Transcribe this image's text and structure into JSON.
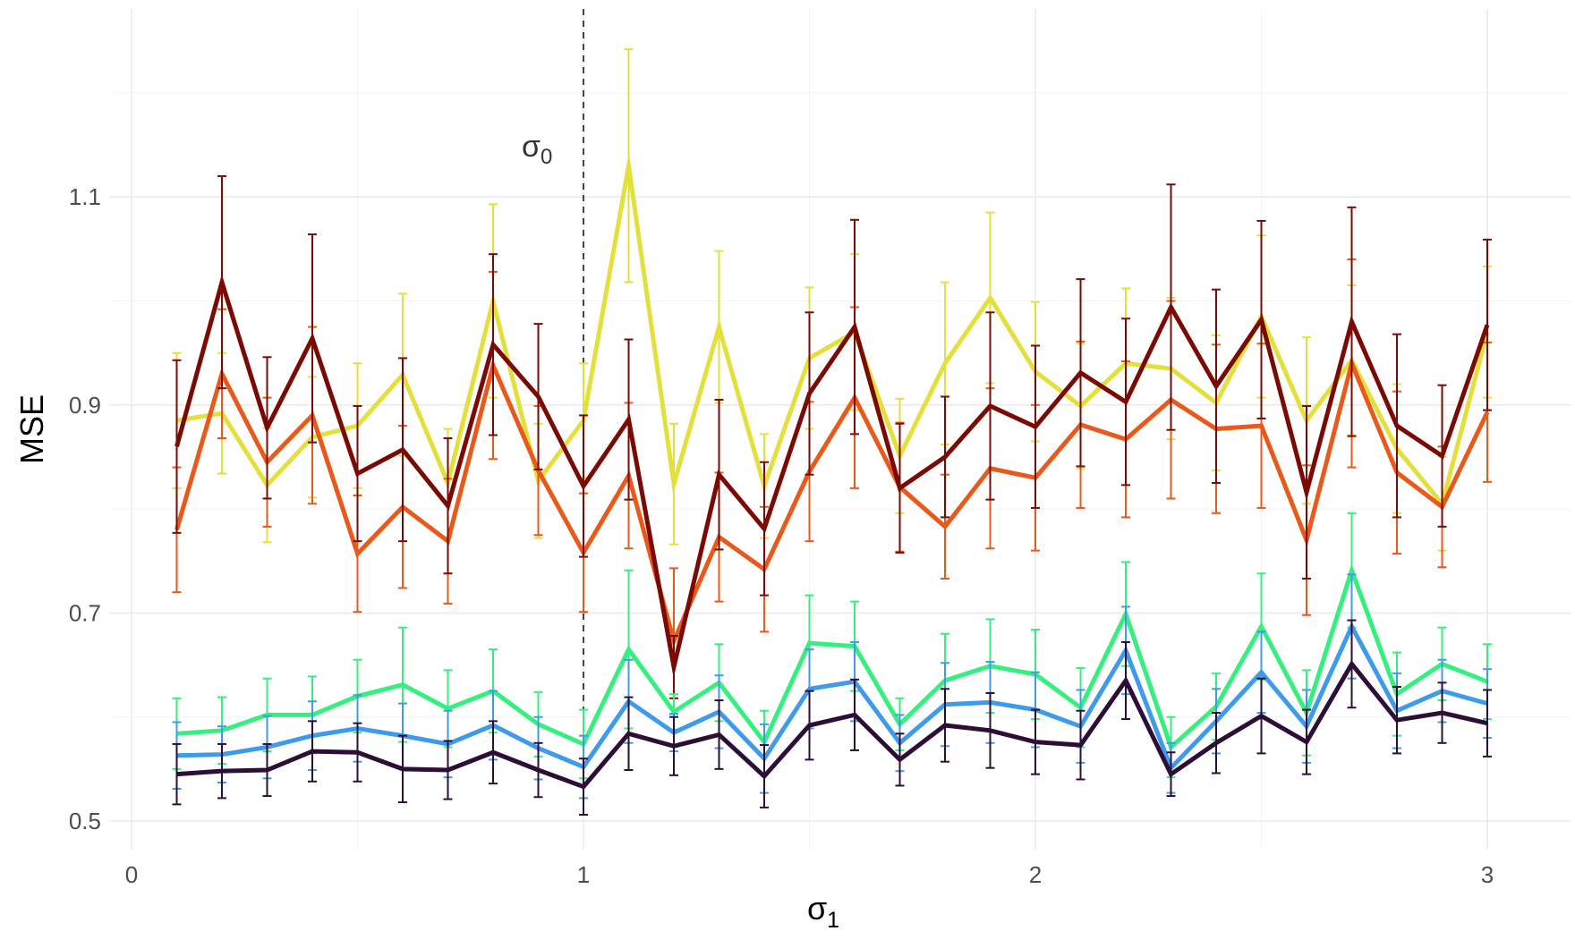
{
  "chart_data": {
    "type": "line",
    "xlabel": "σ",
    "xlabel_sub": "1",
    "ylabel": "MSE",
    "xlim": [
      0,
      3.08
    ],
    "ylim": [
      0.47,
      1.245
    ],
    "x_ticks": [
      0,
      1,
      2,
      3
    ],
    "x_tick_labels": [
      "0",
      "1",
      "2",
      "3"
    ],
    "y_ticks": [
      0.5,
      0.7,
      0.9,
      1.1
    ],
    "y_tick_labels": [
      "0.5",
      "0.7",
      "0.9",
      "1.1"
    ],
    "grid": true,
    "legend": "none",
    "reference_line": {
      "x": 1,
      "style": "dashed",
      "label": "σ",
      "label_sub": "0"
    },
    "x": [
      0.1,
      0.2,
      0.3,
      0.4,
      0.5,
      0.6,
      0.7,
      0.8,
      0.9,
      1.0,
      1.1,
      1.2,
      1.3,
      1.4,
      1.5,
      1.6,
      1.7,
      1.8,
      1.9,
      2.0,
      2.1,
      2.2,
      2.3,
      2.4,
      2.5,
      2.6,
      2.7,
      2.8,
      2.9,
      3.0
    ],
    "series": [
      {
        "color": "#e3e03c",
        "values": [
          0.885,
          0.892,
          0.823,
          0.869,
          0.88,
          0.929,
          0.825,
          1.0,
          0.827,
          0.885,
          1.13,
          0.824,
          0.975,
          0.822,
          0.945,
          0.97,
          0.851,
          0.94,
          1.003,
          0.932,
          0.899,
          0.94,
          0.935,
          0.902,
          0.985,
          0.885,
          0.943,
          0.858,
          0.805,
          0.97
        ],
        "err": [
          0.065,
          0.058,
          0.055,
          0.058,
          0.06,
          0.078,
          0.052,
          0.093,
          0.055,
          0.055,
          0.112,
          0.058,
          0.073,
          0.05,
          0.068,
          0.075,
          0.055,
          0.078,
          0.082,
          0.067,
          0.06,
          0.072,
          0.068,
          0.065,
          0.078,
          0.08,
          0.072,
          0.062,
          0.045,
          0.063
        ]
      },
      {
        "color": "#e8591a",
        "values": [
          0.78,
          0.93,
          0.845,
          0.89,
          0.757,
          0.802,
          0.769,
          0.938,
          0.837,
          0.758,
          0.832,
          0.673,
          0.773,
          0.742,
          0.836,
          0.907,
          0.821,
          0.783,
          0.839,
          0.83,
          0.881,
          0.867,
          0.905,
          0.877,
          0.88,
          0.77,
          0.94,
          0.835,
          0.802,
          0.893
        ],
        "err": [
          0.06,
          0.062,
          0.062,
          0.085,
          0.056,
          0.078,
          0.06,
          0.09,
          0.062,
          0.057,
          0.07,
          0.07,
          0.062,
          0.06,
          0.067,
          0.087,
          0.062,
          0.05,
          0.077,
          0.07,
          0.08,
          0.075,
          0.095,
          0.081,
          0.079,
          0.072,
          0.1,
          0.078,
          0.058,
          0.067
        ]
      },
      {
        "color": "#7a0a03",
        "values": [
          0.86,
          1.018,
          0.878,
          0.964,
          0.834,
          0.857,
          0.803,
          0.958,
          0.908,
          0.822,
          0.886,
          0.648,
          0.833,
          0.781,
          0.911,
          0.975,
          0.82,
          0.85,
          0.899,
          0.879,
          0.931,
          0.903,
          0.994,
          0.918,
          0.982,
          0.816,
          0.98,
          0.88,
          0.851,
          0.977
        ],
        "err": [
          0.083,
          0.102,
          0.068,
          0.1,
          0.065,
          0.088,
          0.065,
          0.087,
          0.07,
          0.068,
          0.077,
          0.03,
          0.072,
          0.064,
          0.078,
          0.103,
          0.062,
          0.058,
          0.09,
          0.078,
          0.09,
          0.08,
          0.118,
          0.093,
          0.095,
          0.083,
          0.11,
          0.088,
          0.068,
          0.082
        ]
      },
      {
        "color": "#35ef7e",
        "values": [
          0.584,
          0.587,
          0.602,
          0.602,
          0.62,
          0.631,
          0.608,
          0.625,
          0.593,
          0.574,
          0.665,
          0.605,
          0.633,
          0.576,
          0.671,
          0.668,
          0.593,
          0.635,
          0.649,
          0.641,
          0.609,
          0.699,
          0.571,
          0.61,
          0.687,
          0.604,
          0.741,
          0.622,
          0.651,
          0.634
        ],
        "err": [
          0.034,
          0.032,
          0.035,
          0.037,
          0.035,
          0.055,
          0.037,
          0.04,
          0.031,
          0.033,
          0.076,
          0.017,
          0.037,
          0.03,
          0.046,
          0.043,
          0.025,
          0.045,
          0.045,
          0.043,
          0.038,
          0.05,
          0.029,
          0.032,
          0.051,
          0.041,
          0.055,
          0.04,
          0.035,
          0.036
        ]
      },
      {
        "color": "#3e9bec",
        "values": [
          0.563,
          0.564,
          0.571,
          0.582,
          0.589,
          0.582,
          0.574,
          0.592,
          0.57,
          0.552,
          0.615,
          0.585,
          0.605,
          0.56,
          0.627,
          0.634,
          0.575,
          0.612,
          0.614,
          0.607,
          0.591,
          0.664,
          0.551,
          0.596,
          0.643,
          0.591,
          0.687,
          0.606,
          0.625,
          0.613
        ],
        "err": [
          0.032,
          0.027,
          0.03,
          0.033,
          0.032,
          0.031,
          0.032,
          0.033,
          0.03,
          0.03,
          0.04,
          0.018,
          0.035,
          0.033,
          0.038,
          0.038,
          0.027,
          0.04,
          0.039,
          0.036,
          0.035,
          0.042,
          0.024,
          0.031,
          0.039,
          0.035,
          0.05,
          0.036,
          0.03,
          0.033
        ]
      },
      {
        "color": "#2d0e36",
        "values": [
          0.545,
          0.548,
          0.549,
          0.567,
          0.566,
          0.55,
          0.549,
          0.566,
          0.549,
          0.533,
          0.584,
          0.572,
          0.583,
          0.543,
          0.592,
          0.602,
          0.559,
          0.592,
          0.587,
          0.576,
          0.573,
          0.635,
          0.545,
          0.575,
          0.601,
          0.576,
          0.651,
          0.597,
          0.604,
          0.594
        ],
        "err": [
          0.029,
          0.026,
          0.025,
          0.029,
          0.028,
          0.032,
          0.028,
          0.03,
          0.026,
          0.027,
          0.035,
          0.028,
          0.033,
          0.03,
          0.033,
          0.034,
          0.025,
          0.035,
          0.036,
          0.031,
          0.033,
          0.037,
          0.021,
          0.029,
          0.036,
          0.031,
          0.042,
          0.032,
          0.029,
          0.032
        ]
      }
    ]
  }
}
